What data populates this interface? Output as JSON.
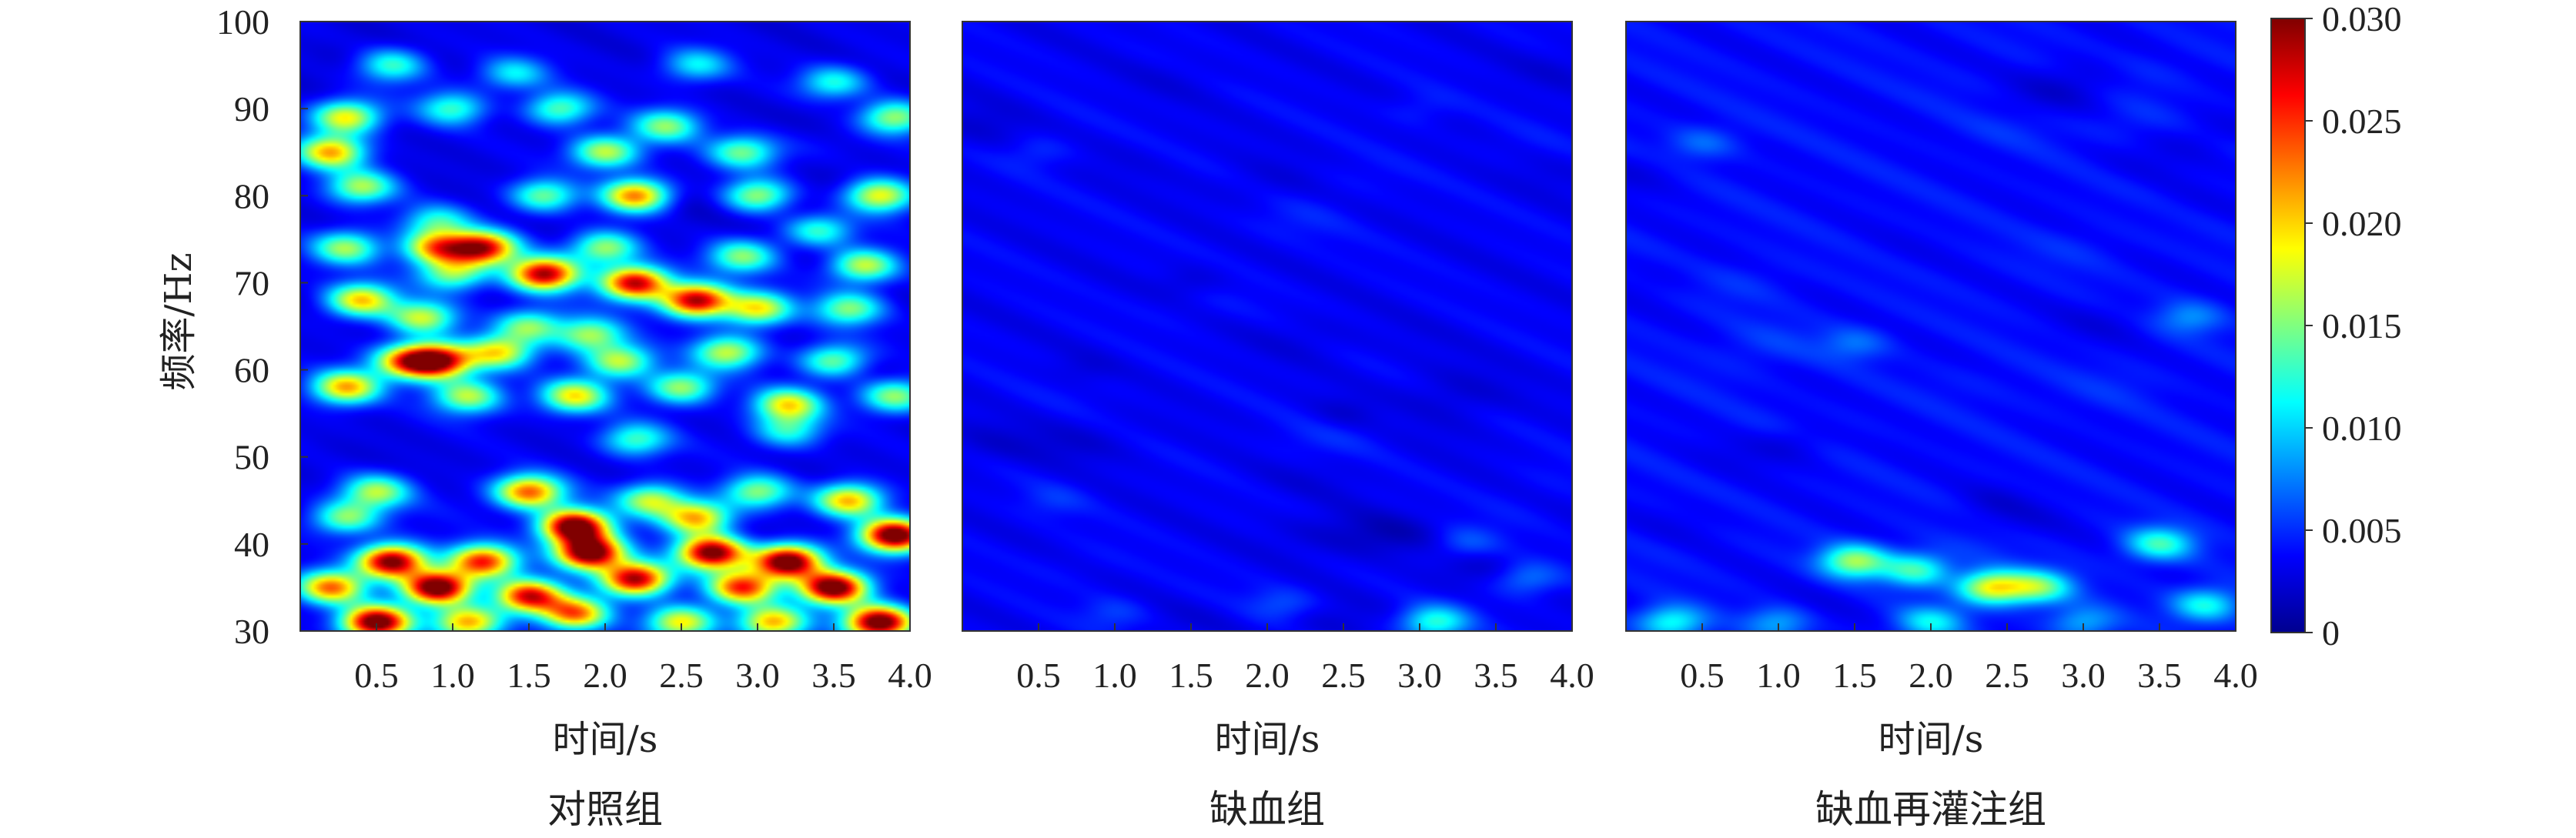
{
  "chart_data": {
    "type": "heatmap",
    "shared_ylabel": "频率/Hz",
    "yticks": [
      "30",
      "40",
      "50",
      "60",
      "70",
      "80",
      "90",
      "100"
    ],
    "ylim": [
      30,
      100
    ],
    "xlim": [
      0,
      4.0
    ],
    "xticks": [
      "0.5",
      "1.0",
      "1.5",
      "2.0",
      "2.5",
      "3.0",
      "3.5",
      "4.0"
    ],
    "colorbar": {
      "min": 0,
      "max": 0.03,
      "ticks": [
        "0.030",
        "0.025",
        "0.020",
        "0.015",
        "0.010",
        "0.005",
        "0"
      ],
      "colormap": "jet"
    },
    "panels": [
      {
        "title": "对照组",
        "xlabel": "时间/s",
        "background": 0.003,
        "blobs": [
          {
            "t": 0.6,
            "f": 95,
            "a": 0.01
          },
          {
            "t": 1.4,
            "f": 94,
            "a": 0.008
          },
          {
            "t": 2.6,
            "f": 95,
            "a": 0.008
          },
          {
            "t": 3.5,
            "f": 93,
            "a": 0.009
          },
          {
            "t": 0.3,
            "f": 89,
            "a": 0.016
          },
          {
            "t": 1.0,
            "f": 90,
            "a": 0.01
          },
          {
            "t": 1.7,
            "f": 90,
            "a": 0.011
          },
          {
            "t": 2.4,
            "f": 88,
            "a": 0.012
          },
          {
            "t": 3.9,
            "f": 89,
            "a": 0.013
          },
          {
            "t": 0.2,
            "f": 85,
            "a": 0.018
          },
          {
            "t": 2.0,
            "f": 85,
            "a": 0.014
          },
          {
            "t": 2.9,
            "f": 85,
            "a": 0.011
          },
          {
            "t": 0.4,
            "f": 81,
            "a": 0.013
          },
          {
            "t": 1.6,
            "f": 80,
            "a": 0.012
          },
          {
            "t": 2.2,
            "f": 80,
            "a": 0.02
          },
          {
            "t": 3.0,
            "f": 80,
            "a": 0.013
          },
          {
            "t": 3.8,
            "f": 80,
            "a": 0.016
          },
          {
            "t": 0.9,
            "f": 77,
            "a": 0.009
          },
          {
            "t": 3.4,
            "f": 76,
            "a": 0.01
          },
          {
            "t": 0.3,
            "f": 74,
            "a": 0.013
          },
          {
            "t": 0.9,
            "f": 74,
            "a": 0.018
          },
          {
            "t": 1.2,
            "f": 74,
            "a": 0.024
          },
          {
            "t": 2.0,
            "f": 74,
            "a": 0.013
          },
          {
            "t": 2.9,
            "f": 73,
            "a": 0.012
          },
          {
            "t": 3.7,
            "f": 72,
            "a": 0.015
          },
          {
            "t": 1.0,
            "f": 71,
            "a": 0.012
          },
          {
            "t": 1.6,
            "f": 71,
            "a": 0.026
          },
          {
            "t": 2.2,
            "f": 70,
            "a": 0.025
          },
          {
            "t": 2.6,
            "f": 68,
            "a": 0.026
          },
          {
            "t": 3.0,
            "f": 67,
            "a": 0.016
          },
          {
            "t": 3.6,
            "f": 67,
            "a": 0.012
          },
          {
            "t": 0.4,
            "f": 68,
            "a": 0.017
          },
          {
            "t": 0.8,
            "f": 66,
            "a": 0.014
          },
          {
            "t": 1.5,
            "f": 65,
            "a": 0.012
          },
          {
            "t": 1.9,
            "f": 64,
            "a": 0.013
          },
          {
            "t": 0.7,
            "f": 61,
            "a": 0.017
          },
          {
            "t": 0.9,
            "f": 61,
            "a": 0.024
          },
          {
            "t": 1.3,
            "f": 62,
            "a": 0.015
          },
          {
            "t": 2.1,
            "f": 61,
            "a": 0.014
          },
          {
            "t": 2.8,
            "f": 62,
            "a": 0.014
          },
          {
            "t": 3.5,
            "f": 61,
            "a": 0.012
          },
          {
            "t": 0.3,
            "f": 58,
            "a": 0.018
          },
          {
            "t": 1.1,
            "f": 57,
            "a": 0.013
          },
          {
            "t": 1.8,
            "f": 57,
            "a": 0.016
          },
          {
            "t": 2.5,
            "f": 58,
            "a": 0.013
          },
          {
            "t": 3.2,
            "f": 56,
            "a": 0.016
          },
          {
            "t": 3.9,
            "f": 57,
            "a": 0.013
          },
          {
            "t": 2.2,
            "f": 52,
            "a": 0.01
          },
          {
            "t": 3.2,
            "f": 53,
            "a": 0.009
          },
          {
            "t": 0.5,
            "f": 46,
            "a": 0.013
          },
          {
            "t": 1.5,
            "f": 46,
            "a": 0.02
          },
          {
            "t": 2.3,
            "f": 45,
            "a": 0.014
          },
          {
            "t": 3.0,
            "f": 46,
            "a": 0.012
          },
          {
            "t": 3.6,
            "f": 45,
            "a": 0.018
          },
          {
            "t": 0.3,
            "f": 43,
            "a": 0.012
          },
          {
            "t": 1.8,
            "f": 42,
            "a": 0.03
          },
          {
            "t": 2.6,
            "f": 43,
            "a": 0.018
          },
          {
            "t": 3.9,
            "f": 41,
            "a": 0.03
          },
          {
            "t": 0.6,
            "f": 38,
            "a": 0.028
          },
          {
            "t": 1.2,
            "f": 38,
            "a": 0.022
          },
          {
            "t": 1.9,
            "f": 39,
            "a": 0.03
          },
          {
            "t": 2.7,
            "f": 39,
            "a": 0.028
          },
          {
            "t": 3.2,
            "f": 38,
            "a": 0.03
          },
          {
            "t": 0.2,
            "f": 35,
            "a": 0.02
          },
          {
            "t": 0.9,
            "f": 35,
            "a": 0.03
          },
          {
            "t": 1.5,
            "f": 34,
            "a": 0.024
          },
          {
            "t": 2.2,
            "f": 36,
            "a": 0.026
          },
          {
            "t": 2.9,
            "f": 35,
            "a": 0.022
          },
          {
            "t": 3.5,
            "f": 35,
            "a": 0.03
          },
          {
            "t": 0.5,
            "f": 31,
            "a": 0.03
          },
          {
            "t": 1.1,
            "f": 31,
            "a": 0.018
          },
          {
            "t": 1.8,
            "f": 32,
            "a": 0.02
          },
          {
            "t": 2.5,
            "f": 31,
            "a": 0.016
          },
          {
            "t": 3.1,
            "f": 31,
            "a": 0.018
          },
          {
            "t": 3.8,
            "f": 31,
            "a": 0.03
          }
        ]
      },
      {
        "title": "缺血组",
        "xlabel": "时间/s",
        "background": 0.0035,
        "blobs": [
          {
            "t": 1.5,
            "f": 70,
            "a": -0.0012
          },
          {
            "t": 2.5,
            "f": 55,
            "a": -0.0012
          },
          {
            "t": 0.8,
            "f": 60,
            "a": -0.0009
          },
          {
            "t": 3.3,
            "f": 40,
            "a": 0.003
          },
          {
            "t": 3.7,
            "f": 36,
            "a": 0.004
          },
          {
            "t": 2.1,
            "f": 33,
            "a": 0.0025
          },
          {
            "t": 3.1,
            "f": 31,
            "a": 0.009
          },
          {
            "t": 1.0,
            "f": 32,
            "a": 0.002
          },
          {
            "t": 0.6,
            "f": 45,
            "a": 0.0015
          },
          {
            "t": 3.0,
            "f": 90,
            "a": 0.0012
          },
          {
            "t": 0.5,
            "f": 85,
            "a": 0.0015
          }
        ]
      },
      {
        "title": "缺血再灌注组",
        "xlabel": "时间/s",
        "background": 0.004,
        "blobs": [
          {
            "t": 1.5,
            "f": 38,
            "a": 0.012
          },
          {
            "t": 1.9,
            "f": 37,
            "a": 0.009
          },
          {
            "t": 2.4,
            "f": 35,
            "a": 0.015
          },
          {
            "t": 2.7,
            "f": 35,
            "a": 0.011
          },
          {
            "t": 3.5,
            "f": 40,
            "a": 0.009
          },
          {
            "t": 3.8,
            "f": 33,
            "a": 0.008
          },
          {
            "t": 2.0,
            "f": 31,
            "a": 0.007
          },
          {
            "t": 0.3,
            "f": 31,
            "a": 0.008
          },
          {
            "t": 1.0,
            "f": 31,
            "a": 0.005
          },
          {
            "t": 3.0,
            "f": 31,
            "a": 0.005
          },
          {
            "t": 3.7,
            "f": 66,
            "a": 0.004
          },
          {
            "t": 1.5,
            "f": 63,
            "a": 0.003
          },
          {
            "t": 0.5,
            "f": 86,
            "a": 0.003
          },
          {
            "t": 2.4,
            "f": 45,
            "a": -0.0008
          },
          {
            "t": 1.1,
            "f": 52,
            "a": -0.0008
          }
        ]
      }
    ]
  }
}
